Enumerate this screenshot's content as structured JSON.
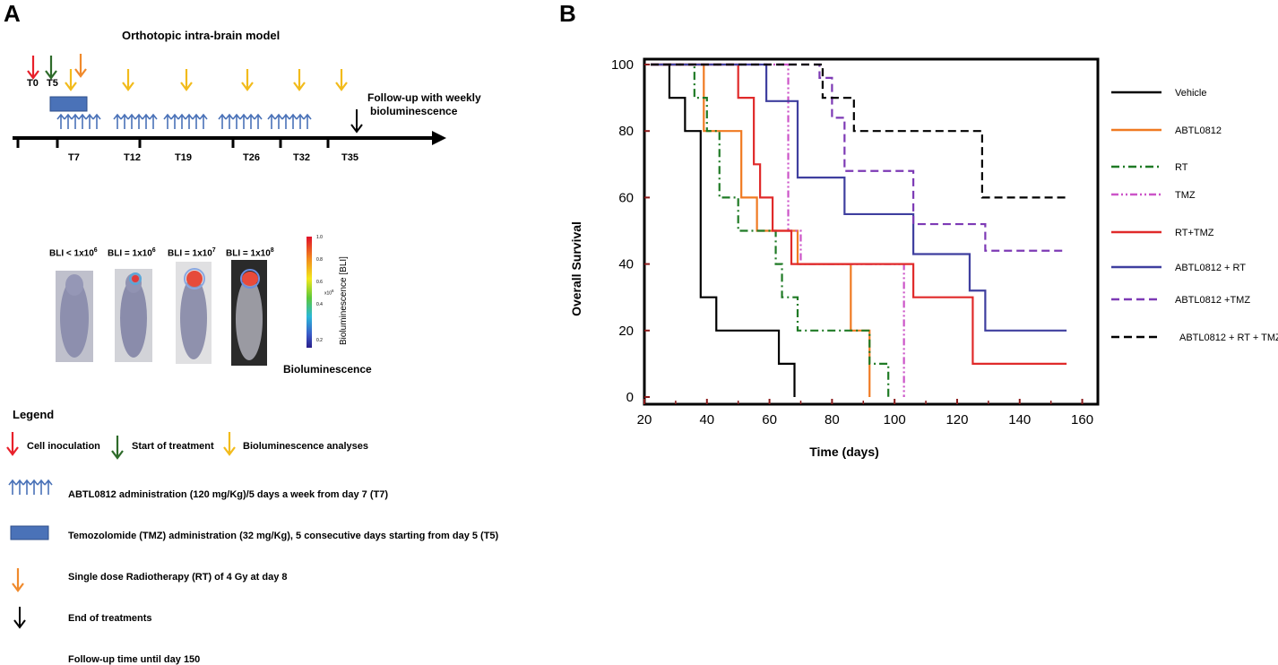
{
  "panel_a": {
    "letter": "A",
    "title": "Orthotopic intra-brain model",
    "start_labels": [
      "T0",
      "T5"
    ],
    "timeline_labels": [
      "T7",
      "T12",
      "T19",
      "T26",
      "T32",
      "T35"
    ],
    "follow_up": [
      "Follow-up with weekly",
      "bioluminescence"
    ],
    "bli_labels": [
      "BLI < 1x10",
      "BLI = 1x10",
      "BLI = 1x10",
      "BLI = 1x10"
    ],
    "bli_exponents": [
      "6",
      "6",
      "7",
      "8"
    ],
    "scale": {
      "ticks": [
        "1.0",
        "0.8",
        "0.6",
        "0.4",
        "0.2"
      ],
      "multiplier": "x10",
      "multiplier_exp": "6",
      "axis_label": "Bioluminescence  [BLI]",
      "caption": "Bioluminescence"
    },
    "legend": {
      "title": "Legend",
      "cell_inoculation": "Cell inoculation",
      "start_treatment": "Start of treatment",
      "bioluminescence": "Bioluminescence analyses",
      "abtl": "ABTL0812 administration (120 mg/Kg)/5 days a week from day 7 (T7)",
      "tmz": "Temozolomide (TMZ)  administration (32 mg/Kg), 5 consecutive days starting from day 5 (T5)",
      "rt": "Single dose Radiotherapy (RT) of 4 Gy at day 8",
      "end": "End  of treatments",
      "follow": "Follow-up time until day 150"
    },
    "colors": {
      "red": "#e8202a",
      "green": "#2e6b2a",
      "yellow": "#f2bb1b",
      "orange": "#f08a2c",
      "blue": "#4a72b8",
      "black": "#000000"
    }
  },
  "panel_b": {
    "letter": "B",
    "chart_data": {
      "type": "line",
      "step": true,
      "title": "",
      "xlabel": "Time (days)",
      "ylabel": "Overall Survival",
      "xlim": [
        20,
        165
      ],
      "ylim": [
        0,
        100
      ],
      "x_ticks": [
        20,
        40,
        60,
        80,
        100,
        120,
        140,
        160
      ],
      "y_ticks": [
        0,
        20,
        40,
        60,
        80,
        100
      ],
      "series": [
        {
          "name": "Vehicle",
          "color": "#000000",
          "dash": "solid",
          "x": [
            22,
            28,
            33,
            38,
            43,
            63,
            68
          ],
          "y": [
            100,
            90,
            80,
            30,
            20,
            10,
            0
          ]
        },
        {
          "name": "ABTL0812",
          "color": "#f07a22",
          "dash": "solid",
          "x": [
            22,
            39,
            51,
            56,
            69,
            86,
            92
          ],
          "y": [
            100,
            80,
            60,
            50,
            40,
            20,
            0
          ]
        },
        {
          "name": "RT",
          "color": "#1f7a25",
          "dash": "dashdot",
          "x": [
            22,
            36,
            40,
            44,
            50,
            62,
            64,
            69,
            92,
            98
          ],
          "y": [
            100,
            90,
            80,
            60,
            50,
            40,
            30,
            20,
            10,
            0
          ]
        },
        {
          "name": "TMZ",
          "color": "#cc55c8",
          "dash": "dashdotdot",
          "x": [
            22,
            66,
            70,
            72,
            103
          ],
          "y": [
            100,
            50,
            40,
            40,
            0
          ]
        },
        {
          "name": "RT+TMZ",
          "color": "#e02a2a",
          "dash": "solid",
          "x": [
            22,
            50,
            55,
            57,
            61,
            67,
            106,
            125,
            155
          ],
          "y": [
            100,
            90,
            70,
            60,
            50,
            40,
            30,
            10,
            10
          ]
        },
        {
          "name": "ABTL0812 + RT",
          "color": "#3f3f9f",
          "dash": "solid",
          "x": [
            22,
            59,
            69,
            84,
            106,
            124,
            129,
            155
          ],
          "y": [
            100,
            89,
            66,
            55,
            43,
            32,
            20,
            20
          ]
        },
        {
          "name": "ABTL0812 +TMZ",
          "color": "#7d3ab5",
          "dash": "dashed",
          "x": [
            22,
            76,
            80,
            84,
            106,
            129,
            155
          ],
          "y": [
            100,
            96,
            84,
            68,
            52,
            44,
            44
          ]
        },
        {
          "name": "ABTL0812 + RT + TMZ",
          "color": "#000000",
          "dash": "dashed",
          "x": [
            22,
            77,
            87,
            128,
            155
          ],
          "y": [
            100,
            90,
            80,
            60,
            60
          ]
        }
      ]
    }
  }
}
